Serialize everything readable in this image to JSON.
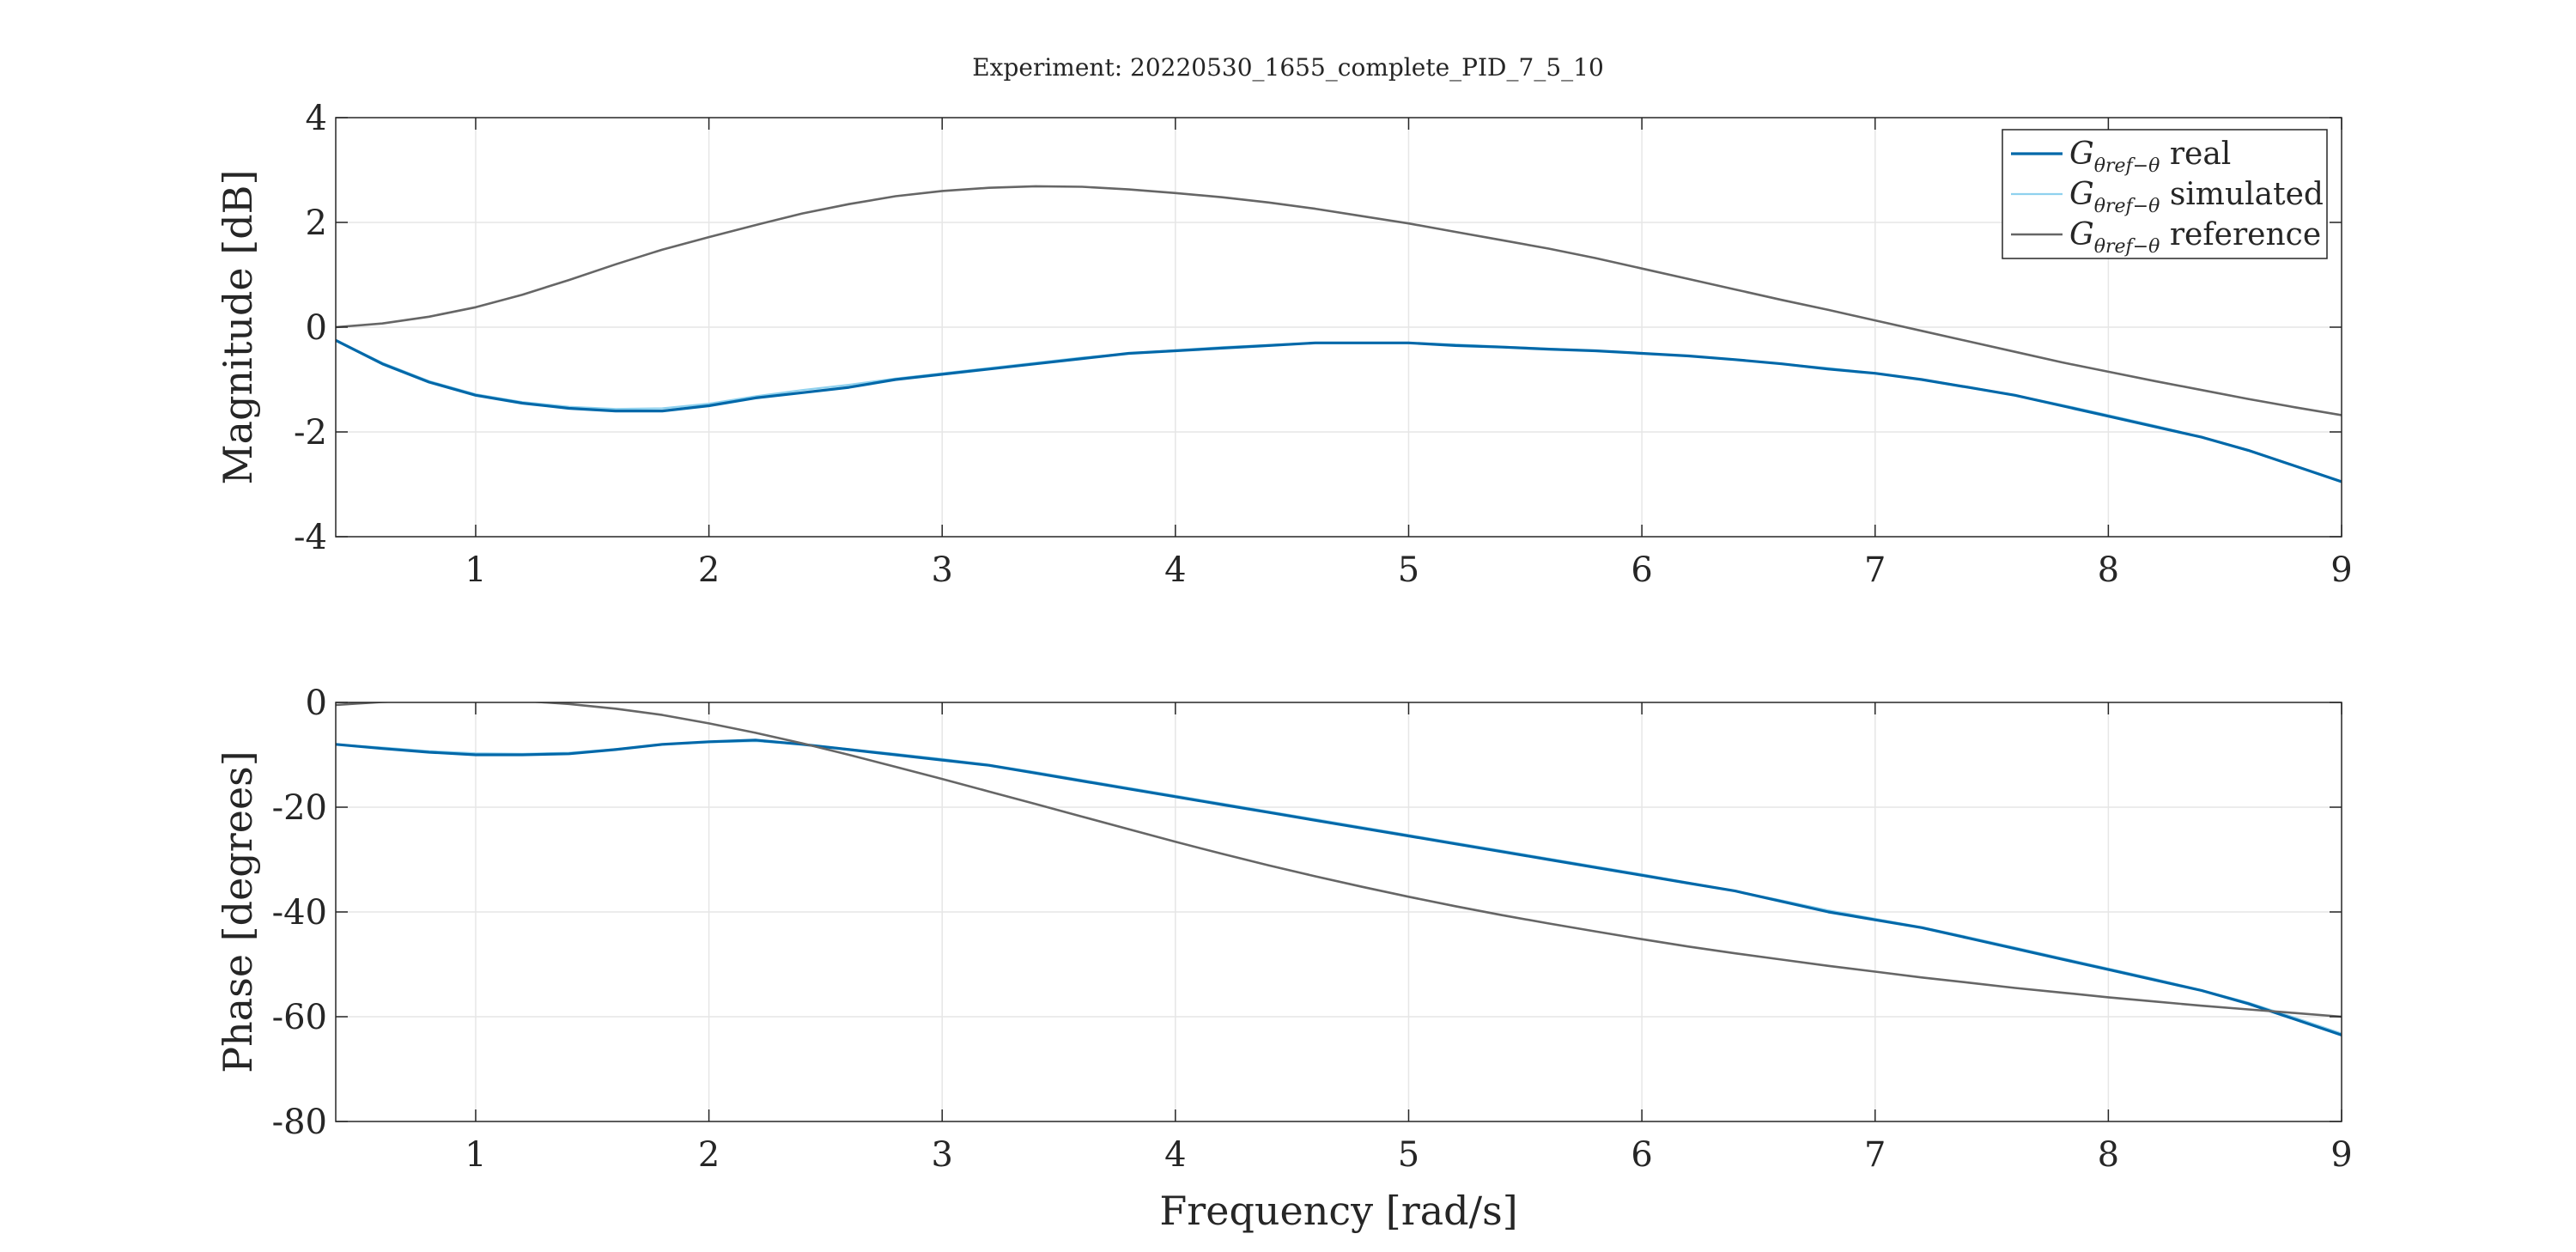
{
  "title": "Experiment: 20220530_1655_complete_PID_7_5_10",
  "colors": {
    "real": "#0068a9",
    "simulated": "#8fd1ee",
    "reference": "#666666",
    "axis": "#262626",
    "grid": "#e6e6e6"
  },
  "legend": {
    "placement": "top-right",
    "entries": [
      {
        "series": "real",
        "symbol": "G",
        "subscript": "θref−θ",
        "label": "real"
      },
      {
        "series": "simulated",
        "symbol": "G",
        "subscript": "θref−θ",
        "label": "simulated"
      },
      {
        "series": "reference",
        "symbol": "G",
        "subscript": "θref−θ",
        "label": "reference"
      }
    ]
  },
  "chart_data": [
    {
      "type": "line",
      "ylabel": "Magnitude [dB]",
      "xlabel": "",
      "xlim": [
        0.4,
        9
      ],
      "ylim": [
        -4,
        4
      ],
      "grid": true,
      "xticks": [
        1,
        2,
        3,
        4,
        5,
        6,
        7,
        8,
        9
      ],
      "yticks": [
        -4,
        -2,
        0,
        2,
        4
      ],
      "series": [
        {
          "key": "real",
          "name": "G θref−θ real",
          "x": [
            0.4,
            0.6,
            0.8,
            1.0,
            1.2,
            1.4,
            1.6,
            1.8,
            2.0,
            2.2,
            2.4,
            2.6,
            2.8,
            3.0,
            3.2,
            3.4,
            3.6,
            3.8,
            4.0,
            4.2,
            4.4,
            4.6,
            4.8,
            5.0,
            5.2,
            5.4,
            5.6,
            5.8,
            6.0,
            6.2,
            6.4,
            6.6,
            6.8,
            7.0,
            7.2,
            7.4,
            7.6,
            7.8,
            8.0,
            8.2,
            8.4,
            8.6,
            8.8,
            9.0
          ],
          "y": [
            -0.25,
            -0.7,
            -1.05,
            -1.3,
            -1.45,
            -1.55,
            -1.6,
            -1.6,
            -1.5,
            -1.35,
            -1.25,
            -1.15,
            -1.0,
            -0.9,
            -0.8,
            -0.7,
            -0.6,
            -0.5,
            -0.45,
            -0.4,
            -0.35,
            -0.3,
            -0.3,
            -0.3,
            -0.35,
            -0.38,
            -0.42,
            -0.45,
            -0.5,
            -0.55,
            -0.62,
            -0.7,
            -0.8,
            -0.88,
            -1.0,
            -1.15,
            -1.3,
            -1.5,
            -1.7,
            -1.9,
            -2.1,
            -2.35,
            -2.65,
            -2.95
          ]
        },
        {
          "key": "simulated",
          "name": "G θref−θ simulated",
          "x": [
            0.4,
            0.6,
            0.8,
            1.0,
            1.2,
            1.4,
            1.6,
            1.8,
            2.0,
            2.2,
            2.4,
            2.6,
            2.8,
            3.0,
            3.2,
            3.4,
            3.6,
            3.8,
            4.0,
            4.2,
            4.4,
            4.6,
            4.8,
            5.0,
            5.2,
            5.4,
            5.6,
            5.8,
            6.0,
            6.2,
            6.4,
            6.6,
            6.8,
            7.0,
            7.2,
            7.4,
            7.6,
            7.8,
            8.0,
            8.2,
            8.4,
            8.6,
            8.8,
            9.0
          ],
          "y": [
            -0.25,
            -0.68,
            -1.03,
            -1.28,
            -1.43,
            -1.52,
            -1.56,
            -1.55,
            -1.46,
            -1.32,
            -1.2,
            -1.1,
            -0.98,
            -0.88,
            -0.78,
            -0.68,
            -0.58,
            -0.5,
            -0.44,
            -0.38,
            -0.34,
            -0.3,
            -0.3,
            -0.3,
            -0.33,
            -0.37,
            -0.41,
            -0.45,
            -0.5,
            -0.55,
            -0.62,
            -0.7,
            -0.78,
            -0.88,
            -1.0,
            -1.14,
            -1.3,
            -1.48,
            -1.68,
            -1.88,
            -2.1,
            -2.36,
            -2.65,
            -2.95
          ]
        },
        {
          "key": "reference",
          "name": "G θref−θ reference",
          "x": [
            0.4,
            0.6,
            0.8,
            1.0,
            1.2,
            1.4,
            1.6,
            1.8,
            2.0,
            2.2,
            2.4,
            2.6,
            2.8,
            3.0,
            3.2,
            3.4,
            3.6,
            3.8,
            4.0,
            4.2,
            4.4,
            4.6,
            4.8,
            5.0,
            5.2,
            5.4,
            5.6,
            5.8,
            6.0,
            6.2,
            6.4,
            6.6,
            6.8,
            7.0,
            7.2,
            7.4,
            7.6,
            7.8,
            8.0,
            8.2,
            8.4,
            8.6,
            8.8,
            9.0
          ],
          "y": [
            0.0,
            0.07,
            0.2,
            0.38,
            0.62,
            0.9,
            1.2,
            1.48,
            1.72,
            1.95,
            2.17,
            2.35,
            2.5,
            2.6,
            2.66,
            2.69,
            2.68,
            2.63,
            2.56,
            2.48,
            2.38,
            2.26,
            2.12,
            1.98,
            1.82,
            1.66,
            1.5,
            1.32,
            1.12,
            0.92,
            0.72,
            0.52,
            0.33,
            0.13,
            -0.07,
            -0.27,
            -0.47,
            -0.67,
            -0.85,
            -1.03,
            -1.2,
            -1.37,
            -1.53,
            -1.68
          ]
        }
      ]
    },
    {
      "type": "line",
      "ylabel": "Phase [degrees]",
      "xlabel": "Frequency [rad/s]",
      "xlim": [
        0.4,
        9
      ],
      "ylim": [
        -80,
        0
      ],
      "grid": true,
      "xticks": [
        1,
        2,
        3,
        4,
        5,
        6,
        7,
        8,
        9
      ],
      "yticks": [
        -80,
        -60,
        -40,
        -20,
        0
      ],
      "series": [
        {
          "key": "real",
          "name": "G θref−θ real",
          "x": [
            0.4,
            0.6,
            0.8,
            1.0,
            1.2,
            1.4,
            1.6,
            1.8,
            2.0,
            2.2,
            2.4,
            2.6,
            2.8,
            3.0,
            3.2,
            3.4,
            3.6,
            3.8,
            4.0,
            4.2,
            4.4,
            4.6,
            4.8,
            5.0,
            5.2,
            5.4,
            5.6,
            5.8,
            6.0,
            6.2,
            6.4,
            6.6,
            6.8,
            7.0,
            7.2,
            7.4,
            7.6,
            7.8,
            8.0,
            8.2,
            8.4,
            8.6,
            8.8,
            9.0
          ],
          "y": [
            -8.0,
            -8.8,
            -9.5,
            -10.0,
            -10.0,
            -9.8,
            -9.0,
            -8.0,
            -7.5,
            -7.2,
            -8.0,
            -9.0,
            -10.0,
            -11.0,
            -12.0,
            -13.5,
            -15.0,
            -16.5,
            -18.0,
            -19.5,
            -21.0,
            -22.5,
            -24.0,
            -25.5,
            -27.0,
            -28.5,
            -30.0,
            -31.5,
            -33.0,
            -34.5,
            -36.0,
            -38.0,
            -40.0,
            -41.5,
            -43.0,
            -45.0,
            -47.0,
            -49.0,
            -51.0,
            -53.0,
            -55.0,
            -57.5,
            -60.5,
            -63.5
          ]
        },
        {
          "key": "simulated",
          "name": "G θref−θ simulated",
          "x": [
            0.4,
            0.6,
            0.8,
            1.0,
            1.2,
            1.4,
            1.6,
            1.8,
            2.0,
            2.2,
            2.4,
            2.6,
            2.8,
            3.0,
            3.2,
            3.4,
            3.6,
            3.8,
            4.0,
            4.2,
            4.4,
            4.6,
            4.8,
            5.0,
            5.2,
            5.4,
            5.6,
            5.8,
            6.0,
            6.2,
            6.4,
            6.6,
            6.8,
            7.0,
            7.2,
            7.4,
            7.6,
            7.8,
            8.0,
            8.2,
            8.4,
            8.6,
            8.8,
            9.0
          ],
          "y": [
            -8.0,
            -8.6,
            -9.3,
            -9.7,
            -9.8,
            -9.6,
            -8.9,
            -8.1,
            -7.6,
            -7.4,
            -8.0,
            -8.9,
            -9.8,
            -10.8,
            -11.9,
            -13.3,
            -14.8,
            -16.3,
            -17.8,
            -19.3,
            -20.8,
            -22.3,
            -23.8,
            -25.3,
            -26.8,
            -28.3,
            -29.8,
            -31.3,
            -32.8,
            -34.4,
            -36.0,
            -37.8,
            -39.7,
            -41.3,
            -42.9,
            -44.8,
            -46.8,
            -48.8,
            -50.8,
            -52.8,
            -54.9,
            -57.3,
            -60.2,
            -63.2
          ]
        },
        {
          "key": "reference",
          "name": "G θref−θ reference",
          "x": [
            0.4,
            0.6,
            0.8,
            1.0,
            1.2,
            1.4,
            1.6,
            1.8,
            2.0,
            2.2,
            2.4,
            2.6,
            2.8,
            3.0,
            3.2,
            3.4,
            3.6,
            3.8,
            4.0,
            4.2,
            4.4,
            4.6,
            4.8,
            5.0,
            5.2,
            5.4,
            5.6,
            5.8,
            6.0,
            6.2,
            6.4,
            6.6,
            6.8,
            7.0,
            7.2,
            7.4,
            7.6,
            7.8,
            8.0,
            8.2,
            8.4,
            8.6,
            8.8,
            9.0
          ],
          "y": [
            -0.5,
            0.1,
            0.4,
            0.5,
            0.3,
            -0.3,
            -1.2,
            -2.4,
            -4.0,
            -5.8,
            -7.8,
            -10.0,
            -12.3,
            -14.6,
            -17.0,
            -19.4,
            -21.8,
            -24.2,
            -26.6,
            -28.9,
            -31.1,
            -33.2,
            -35.2,
            -37.1,
            -38.9,
            -40.6,
            -42.2,
            -43.7,
            -45.2,
            -46.6,
            -47.9,
            -49.1,
            -50.3,
            -51.4,
            -52.5,
            -53.5,
            -54.5,
            -55.4,
            -56.3,
            -57.1,
            -57.9,
            -58.6,
            -59.3,
            -60.0
          ]
        }
      ]
    }
  ]
}
